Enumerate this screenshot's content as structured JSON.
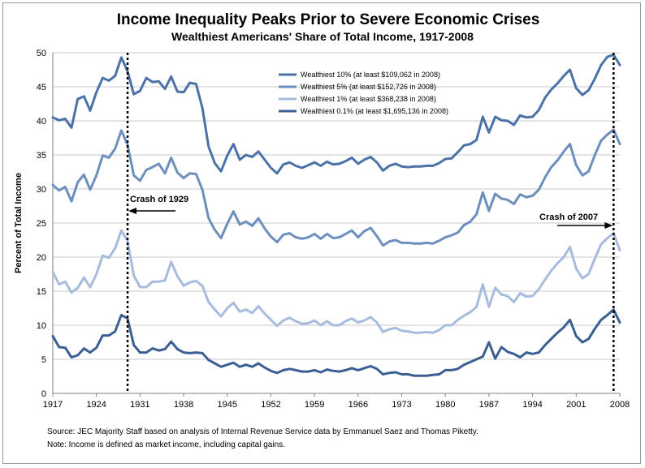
{
  "chart_data": {
    "type": "line",
    "title": "Income Inequality Peaks Prior to Severe Economic Crises",
    "subtitle": "Wealthiest Americans' Share of Total Income, 1917-2008",
    "ylabel": "Percent of Total Income",
    "xlabel": "",
    "xlim": [
      1917,
      2008
    ],
    "ylim": [
      0,
      50
    ],
    "x_ticks": [
      1917,
      1924,
      1931,
      1938,
      1945,
      1952,
      1959,
      1966,
      1973,
      1980,
      1987,
      1994,
      2001,
      2008
    ],
    "y_ticks": [
      0,
      5,
      10,
      15,
      20,
      25,
      30,
      35,
      40,
      45,
      50
    ],
    "grid": "horizontal",
    "legend_position": "top-center",
    "x": [
      1917,
      1918,
      1919,
      1920,
      1921,
      1922,
      1923,
      1924,
      1925,
      1926,
      1927,
      1928,
      1929,
      1930,
      1931,
      1932,
      1933,
      1934,
      1935,
      1936,
      1937,
      1938,
      1939,
      1940,
      1941,
      1942,
      1943,
      1944,
      1945,
      1946,
      1947,
      1948,
      1949,
      1950,
      1951,
      1952,
      1953,
      1954,
      1955,
      1956,
      1957,
      1958,
      1959,
      1960,
      1961,
      1962,
      1963,
      1964,
      1965,
      1966,
      1967,
      1968,
      1969,
      1970,
      1971,
      1972,
      1973,
      1974,
      1975,
      1976,
      1977,
      1978,
      1979,
      1980,
      1981,
      1982,
      1983,
      1984,
      1985,
      1986,
      1987,
      1988,
      1989,
      1990,
      1991,
      1992,
      1993,
      1994,
      1995,
      1996,
      1997,
      1998,
      1999,
      2000,
      2001,
      2002,
      2003,
      2004,
      2005,
      2006,
      2007,
      2008
    ],
    "series": [
      {
        "name": "Wealthiest 10% (at least $109,062 in 2008)",
        "color": "#4a72a8",
        "values": [
          40.5,
          40.1,
          40.3,
          39.0,
          43.2,
          43.6,
          41.5,
          44.2,
          46.3,
          45.9,
          46.6,
          49.3,
          47.3,
          43.9,
          44.4,
          46.3,
          45.7,
          45.8,
          44.7,
          46.5,
          44.3,
          44.2,
          45.6,
          45.4,
          41.9,
          36.2,
          33.8,
          32.6,
          34.9,
          36.6,
          34.3,
          35.0,
          34.7,
          35.5,
          34.3,
          33.1,
          32.3,
          33.6,
          33.9,
          33.4,
          33.1,
          33.5,
          33.9,
          33.4,
          34.0,
          33.6,
          33.7,
          34.1,
          34.6,
          33.7,
          34.3,
          34.7,
          33.9,
          32.7,
          33.4,
          33.7,
          33.3,
          33.2,
          33.3,
          33.3,
          33.4,
          33.4,
          33.8,
          34.4,
          34.5,
          35.4,
          36.4,
          36.6,
          37.2,
          40.6,
          38.3,
          40.6,
          40.1,
          40.0,
          39.4,
          40.8,
          40.5,
          40.6,
          41.6,
          43.4,
          44.6,
          45.5,
          46.6,
          47.5,
          44.8,
          43.8,
          44.5,
          46.2,
          48.2,
          49.4,
          49.7,
          48.2
        ]
      },
      {
        "name": "Wealthiest 5% (at least $152,726 in 2008)",
        "color": "#6d8fbd",
        "values": [
          30.6,
          29.8,
          30.3,
          28.2,
          31.0,
          32.1,
          29.9,
          32.0,
          34.9,
          34.6,
          35.9,
          38.6,
          36.5,
          32.0,
          31.2,
          32.8,
          33.2,
          33.7,
          32.3,
          34.6,
          32.4,
          31.6,
          32.3,
          32.2,
          29.9,
          25.7,
          24.0,
          22.8,
          24.9,
          26.7,
          24.8,
          25.2,
          24.6,
          25.7,
          24.2,
          23.0,
          22.2,
          23.3,
          23.5,
          22.9,
          22.7,
          22.9,
          23.4,
          22.7,
          23.4,
          22.8,
          22.9,
          23.4,
          23.9,
          22.9,
          23.8,
          24.3,
          23.1,
          21.7,
          22.3,
          22.5,
          22.1,
          22.1,
          22.0,
          22.0,
          22.1,
          22.0,
          22.4,
          22.9,
          23.2,
          23.6,
          24.7,
          25.2,
          26.3,
          29.5,
          26.8,
          29.3,
          28.6,
          28.4,
          27.8,
          29.2,
          28.8,
          29.0,
          29.9,
          31.7,
          33.2,
          34.2,
          35.5,
          36.6,
          33.5,
          32.0,
          32.6,
          35.0,
          37.1,
          38.0,
          38.7,
          36.6
        ]
      },
      {
        "name": "Wealthiest 1% (at least $368,238 in 2008)",
        "color": "#a7bcdc",
        "values": [
          17.8,
          16.0,
          16.4,
          14.8,
          15.5,
          17.0,
          15.6,
          17.5,
          20.2,
          19.9,
          21.3,
          23.9,
          22.4,
          17.3,
          15.6,
          15.6,
          16.4,
          16.4,
          16.6,
          19.3,
          17.2,
          15.8,
          16.3,
          16.5,
          15.8,
          13.4,
          12.3,
          11.3,
          12.5,
          13.3,
          12.0,
          12.3,
          11.8,
          12.8,
          11.7,
          10.8,
          9.9,
          10.7,
          11.1,
          10.6,
          10.2,
          10.3,
          10.7,
          10.0,
          10.6,
          10.0,
          10.0,
          10.6,
          11.0,
          10.4,
          10.7,
          11.2,
          10.4,
          9.0,
          9.4,
          9.6,
          9.2,
          9.1,
          8.9,
          8.9,
          9.0,
          8.9,
          9.3,
          10.0,
          10.0,
          10.8,
          11.4,
          11.9,
          12.7,
          16.0,
          12.7,
          15.5,
          14.5,
          14.3,
          13.4,
          14.7,
          14.2,
          14.3,
          15.3,
          16.7,
          18.0,
          19.1,
          20.0,
          21.5,
          18.3,
          16.9,
          17.5,
          19.8,
          21.9,
          22.8,
          23.5,
          21.0
        ]
      },
      {
        "name": "Wealthiest 0.1% (at least $1,695,136 in 2008)",
        "color": "#3b5f94",
        "values": [
          8.4,
          6.8,
          6.7,
          5.3,
          5.6,
          6.6,
          6.0,
          6.7,
          8.5,
          8.5,
          9.1,
          11.5,
          11.0,
          7.1,
          6.0,
          6.0,
          6.6,
          6.3,
          6.5,
          7.6,
          6.5,
          6.0,
          5.9,
          6.0,
          5.9,
          4.9,
          4.4,
          3.9,
          4.2,
          4.5,
          3.9,
          4.2,
          3.9,
          4.4,
          3.8,
          3.3,
          3.0,
          3.4,
          3.6,
          3.4,
          3.2,
          3.2,
          3.4,
          3.1,
          3.5,
          3.3,
          3.2,
          3.4,
          3.7,
          3.4,
          3.7,
          4.0,
          3.6,
          2.8,
          3.0,
          3.1,
          2.8,
          2.8,
          2.6,
          2.6,
          2.6,
          2.7,
          2.8,
          3.4,
          3.4,
          3.6,
          4.2,
          4.6,
          5.0,
          5.4,
          7.5,
          5.1,
          6.8,
          6.1,
          5.8,
          5.3,
          6.0,
          5.8,
          6.0,
          7.1,
          8.0,
          8.9,
          9.7,
          10.8,
          8.4,
          7.5,
          8.0,
          9.5,
          10.8,
          11.5,
          12.3,
          10.4
        ]
      }
    ],
    "annotations": [
      {
        "text": "Crash of 1929",
        "x": 1929
      },
      {
        "text": "Crash of 2007",
        "x": 2007
      }
    ]
  },
  "footer": {
    "source": "Source: JEC Majority Staff based on analysis of Internal Revenue Service data by Emmanuel Saez and Thomas Piketty.",
    "note": "Note: Income is defined as market income, including capital gains."
  }
}
